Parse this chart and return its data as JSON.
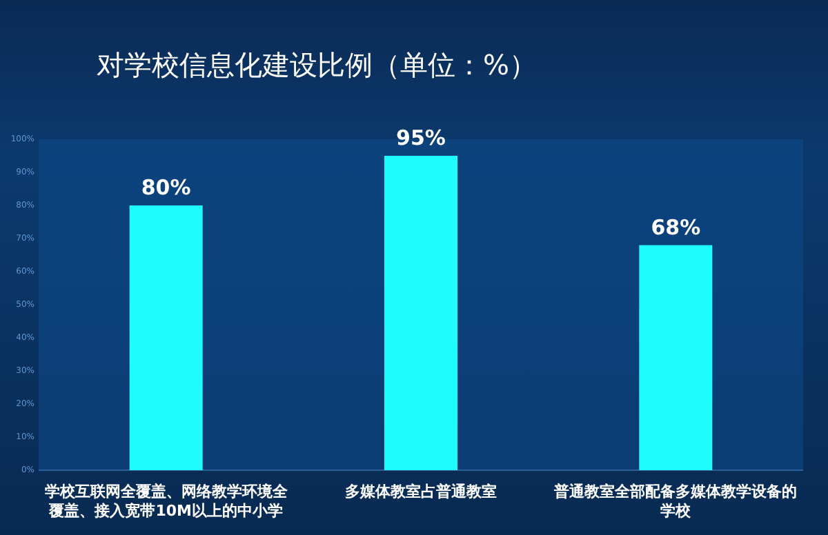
{
  "chart_data": {
    "type": "bar",
    "title": "对学校信息化建设比例（单位：%）",
    "categories": [
      "学校互联网全覆盖、网络教学环境全覆盖、接入宽带10M以上的中小学",
      "多媒体教室占普通教室",
      "普通教室全部配备多媒体教学设备的学校"
    ],
    "values": [
      80,
      95,
      68
    ],
    "value_labels": [
      "80%",
      "95%",
      "68%"
    ],
    "color": "#1ffcfc",
    "ylim": [
      0,
      100
    ],
    "yticks": [
      {
        "value": 0,
        "label": "0%"
      },
      {
        "value": 10,
        "label": "10%"
      },
      {
        "value": 20,
        "label": "20%"
      },
      {
        "value": 30,
        "label": "30%"
      },
      {
        "value": 40,
        "label": "40%"
      },
      {
        "value": 50,
        "label": "50%"
      },
      {
        "value": 60,
        "label": "60%"
      },
      {
        "value": 70,
        "label": "70%"
      },
      {
        "value": 80,
        "label": "80%"
      },
      {
        "value": 90,
        "label": "90%"
      },
      {
        "value": 100,
        "label": "100%"
      }
    ],
    "grid": false
  }
}
